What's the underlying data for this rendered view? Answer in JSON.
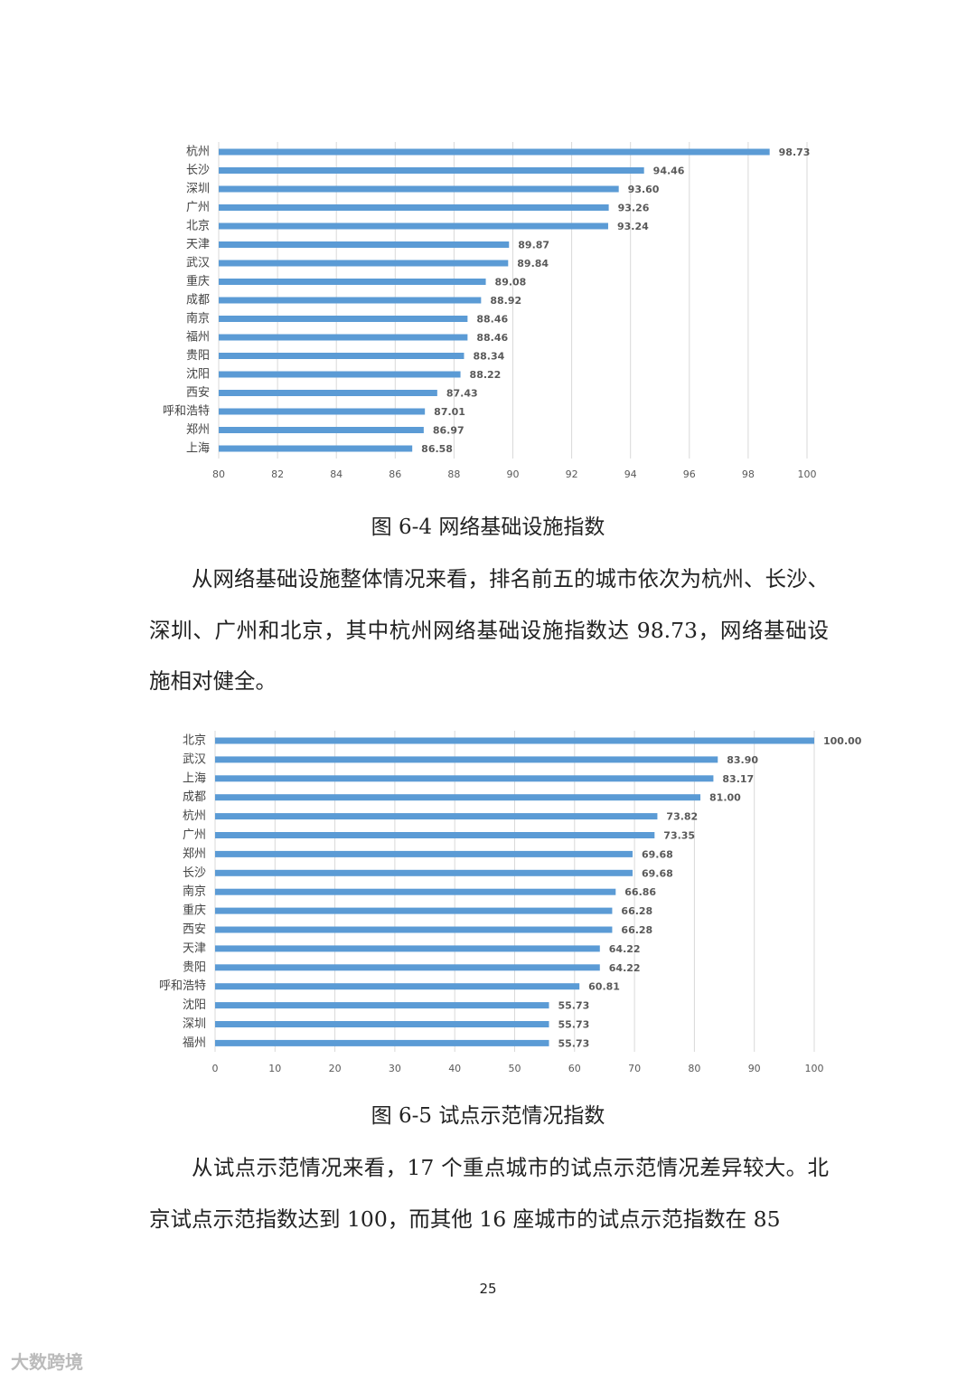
{
  "chart_data": [
    {
      "type": "bar",
      "horizontal": true,
      "grid": true,
      "color": "#5b9bd5",
      "categories": [
        "杭州",
        "长沙",
        "深圳",
        "广州",
        "北京",
        "天津",
        "武汉",
        "重庆",
        "成都",
        "南京",
        "福州",
        "贵阳",
        "沈阳",
        "西安",
        "呼和浩特",
        "郑州",
        "上海"
      ],
      "values": [
        98.73,
        94.46,
        93.6,
        93.26,
        93.24,
        89.87,
        89.84,
        89.08,
        88.92,
        88.46,
        88.46,
        88.34,
        88.22,
        87.43,
        87.01,
        86.97,
        86.58
      ],
      "value_labels": [
        "98.73",
        "94.46",
        "93.60",
        "93.26",
        "93.24",
        "89.87",
        "89.84",
        "89.08",
        "88.92",
        "88.46",
        "88.46",
        "88.34",
        "88.22",
        "87.43",
        "87.01",
        "86.97",
        "86.58"
      ],
      "xlim": [
        80,
        100
      ],
      "xticks": [
        80,
        82,
        84,
        86,
        88,
        90,
        92,
        94,
        96,
        98,
        100
      ]
    },
    {
      "type": "bar",
      "horizontal": true,
      "grid": true,
      "color": "#5b9bd5",
      "categories": [
        "北京",
        "武汉",
        "上海",
        "成都",
        "杭州",
        "广州",
        "郑州",
        "长沙",
        "南京",
        "重庆",
        "西安",
        "天津",
        "贵阳",
        "呼和浩特",
        "沈阳",
        "深圳",
        "福州"
      ],
      "values": [
        100,
        83.9,
        83.17,
        81,
        73.82,
        73.35,
        69.68,
        69.68,
        66.86,
        66.28,
        66.28,
        64.22,
        64.22,
        60.81,
        55.73,
        55.73,
        55.73
      ],
      "value_labels": [
        "100.00",
        "83.90",
        "83.17",
        "81.00",
        "73.82",
        "73.35",
        "69.68",
        "69.68",
        "66.86",
        "66.28",
        "66.28",
        "64.22",
        "64.22",
        "60.81",
        "55.73",
        "55.73",
        "55.73"
      ],
      "xlim": [
        0,
        100
      ],
      "xticks": [
        0,
        10,
        20,
        30,
        40,
        50,
        60,
        70,
        80,
        90,
        100
      ]
    }
  ],
  "captions": [
    "图 6-4 网络基础设施指数",
    "图 6-5 试点示范情况指数"
  ],
  "paragraphs": [
    "从网络基础设施整体情况来看，排名前五的城市依次为杭州、长沙、深圳、广州和北京，其中杭州网络基础设施指数达 98.73，网络基础设施相对健全。",
    "从试点示范情况来看，17 个重点城市的试点示范情况差异较大。北京试点示范指数达到 100，而其他 16 座城市的试点示范指数在 85"
  ],
  "page_number": "25",
  "watermark": "大数跨境"
}
